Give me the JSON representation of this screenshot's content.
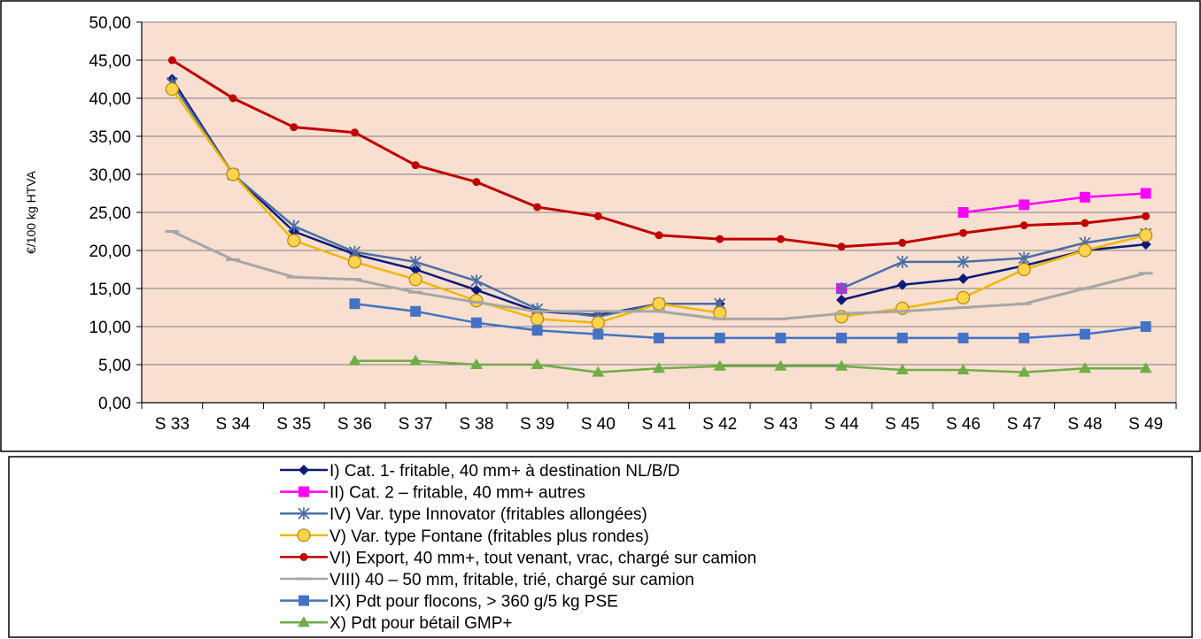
{
  "chart_data": {
    "type": "line",
    "ylabel": "€/100 kg HTVA",
    "ylim": [
      0,
      50
    ],
    "y_ticks": [
      "0,00",
      "5,00",
      "10,00",
      "15,00",
      "20,00",
      "25,00",
      "30,00",
      "35,00",
      "40,00",
      "45,00",
      "50,00"
    ],
    "categories": [
      "S 33",
      "S 34",
      "S 35",
      "S 36",
      "S 37",
      "S 38",
      "S 39",
      "S 40",
      "S 41",
      "S 42",
      "S 43",
      "S 44",
      "S 45",
      "S 46",
      "S 47",
      "S 48",
      "S 49"
    ],
    "grid": true,
    "plot_background": "#f8dfd0",
    "legend_position": "bottom",
    "series": [
      {
        "name": "I) Cat. 1- fritable, 40 mm+ à destination NL/B/D",
        "color": "#0d1a7a",
        "marker": "diamond",
        "values": [
          42.5,
          30,
          22.5,
          19.5,
          17.5,
          14.8,
          12,
          11.5,
          13,
          13,
          null,
          13.5,
          15.5,
          16.3,
          18,
          20,
          20.8
        ]
      },
      {
        "name": "II) Cat. 2 – fritable, 40 mm+ autres",
        "color": "#ff00ff",
        "marker": "square",
        "values": [
          null,
          null,
          null,
          null,
          null,
          null,
          null,
          null,
          null,
          null,
          null,
          15,
          null,
          25,
          26,
          27,
          27.5
        ]
      },
      {
        "name": "IV) Var. type Innovator (fritables allongées)",
        "color": "#4a6fa5",
        "marker": "star",
        "values": [
          42,
          30,
          23.2,
          19.8,
          18.5,
          16,
          12.3,
          11.3,
          13,
          13,
          null,
          15,
          18.5,
          18.5,
          19,
          21,
          22.2
        ]
      },
      {
        "name": "V) Var. type Fontane (fritables plus rondes)",
        "color": "#f0b800",
        "marker": "circle",
        "values": [
          41.2,
          30,
          21.3,
          18.5,
          16.2,
          13.4,
          11,
          10.5,
          13,
          11.8,
          null,
          11.3,
          12.4,
          13.8,
          17.5,
          20,
          22
        ]
      },
      {
        "name": "VI) Export, 40 mm+, tout venant, vrac, chargé sur camion",
        "color": "#c00000",
        "marker": "dot",
        "values": [
          45,
          40,
          36.2,
          35.5,
          31.2,
          29,
          25.7,
          24.5,
          22,
          21.5,
          21.5,
          20.5,
          21,
          22.3,
          23.3,
          23.6,
          24.5
        ]
      },
      {
        "name": "VIII)  40 – 50 mm, fritable, trié, chargé sur camion",
        "color": "#a6a6a6",
        "marker": "dash",
        "values": [
          22.5,
          18.8,
          16.5,
          16.2,
          14.5,
          13.2,
          12,
          12,
          12,
          11,
          11,
          11.7,
          12,
          12.5,
          13,
          15,
          17
        ]
      },
      {
        "name": "IX) Pdt pour flocons, > 360 g/5 kg PSE",
        "color": "#4472c4",
        "marker": "square",
        "values": [
          null,
          null,
          null,
          13,
          12,
          10.5,
          9.5,
          9,
          8.5,
          8.5,
          8.5,
          8.5,
          8.5,
          8.5,
          8.5,
          9,
          10
        ]
      },
      {
        "name": "X) Pdt pour bétail GMP+",
        "color": "#70ad47",
        "marker": "triangle",
        "values": [
          null,
          null,
          null,
          5.5,
          5.5,
          5,
          5,
          4,
          4.5,
          4.8,
          4.8,
          4.8,
          4.3,
          4.3,
          4,
          4.5,
          4.5
        ]
      }
    ]
  }
}
